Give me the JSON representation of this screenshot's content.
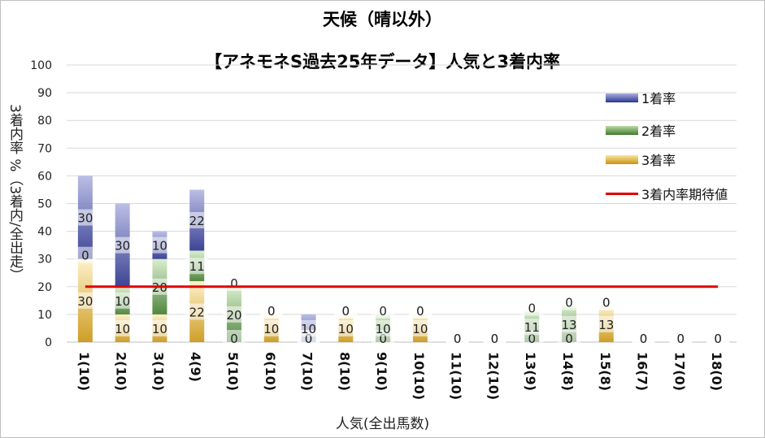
{
  "chart_data": {
    "type": "bar",
    "stacked": true,
    "title": "天候（晴以外）",
    "subtitle": "【アネモネS過去25年データ】人気と3着内率",
    "xlabel": "人気(全出馬数)",
    "ylabel": "3着内率 %（3着内/全出走）",
    "ylim": [
      0,
      100
    ],
    "yticks": [
      0,
      10,
      20,
      30,
      40,
      50,
      60,
      70,
      80,
      90,
      100
    ],
    "grid": true,
    "legend_position": "right",
    "categories": [
      "1(10)",
      "2(10)",
      "3(10)",
      "4(9)",
      "5(10)",
      "6(10)",
      "7(10)",
      "8(10)",
      "9(10)",
      "10(10)",
      "11(10)",
      "12(10)",
      "13(9)",
      "14(8)",
      "15(8)",
      "16(7)",
      "17(0)",
      "18(0)"
    ],
    "series": [
      {
        "name": "3着率",
        "color": "#d9a928",
        "values": [
          30,
          10,
          10,
          22,
          0,
          10,
          0,
          10,
          0,
          10,
          0,
          0,
          0,
          0,
          13,
          0,
          0,
          0
        ]
      },
      {
        "name": "2着率",
        "color": "#6aa84f",
        "values": [
          0,
          10,
          20,
          11,
          20,
          0,
          0,
          0,
          10,
          0,
          0,
          0,
          11,
          13,
          0,
          0,
          0,
          0
        ]
      },
      {
        "name": "1着率",
        "color": "#3f4aa5",
        "values": [
          30,
          30,
          10,
          22,
          0,
          0,
          10,
          0,
          0,
          0,
          0,
          0,
          0,
          0,
          0,
          0,
          0,
          0
        ]
      }
    ],
    "reference_line": {
      "name": "3着内率期待値",
      "color": "#e00000",
      "value": 20
    },
    "label_order": [
      "3着率",
      "2着率",
      "1着率"
    ]
  },
  "legend": {
    "items": [
      {
        "label": "1着率",
        "icon": "blue-gradient-swatch"
      },
      {
        "label": "2着率",
        "icon": "green-gradient-swatch"
      },
      {
        "label": "3着率",
        "icon": "gold-gradient-swatch"
      },
      {
        "label": "3着内率期待値",
        "icon": "red-line-swatch"
      }
    ]
  }
}
